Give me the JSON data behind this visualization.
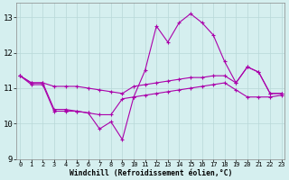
{
  "x": [
    0,
    1,
    2,
    3,
    4,
    5,
    6,
    7,
    8,
    9,
    10,
    11,
    12,
    13,
    14,
    15,
    16,
    17,
    18,
    19,
    20,
    21,
    22,
    23
  ],
  "line1_volatile": [
    11.35,
    11.15,
    11.15,
    10.4,
    10.4,
    10.35,
    10.3,
    9.85,
    10.05,
    9.55,
    10.75,
    11.5,
    12.75,
    12.3,
    12.85,
    13.1,
    12.85,
    12.5,
    11.75,
    11.15,
    11.6,
    11.45,
    10.85,
    10.85
  ],
  "line2_upper": [
    11.35,
    11.15,
    11.15,
    11.05,
    11.05,
    11.05,
    11.0,
    10.95,
    10.9,
    10.85,
    11.05,
    11.1,
    11.15,
    11.2,
    11.25,
    11.3,
    11.3,
    11.35,
    11.35,
    11.15,
    11.6,
    11.45,
    10.85,
    10.85
  ],
  "line3_lower": [
    11.35,
    11.1,
    11.1,
    10.35,
    10.35,
    10.35,
    10.3,
    10.25,
    10.25,
    10.7,
    10.75,
    10.8,
    10.85,
    10.9,
    10.95,
    11.0,
    11.05,
    11.1,
    11.15,
    10.95,
    10.75,
    10.75,
    10.75,
    10.8
  ],
  "line_color": "#aa00aa",
  "bg_color": "#d5efef",
  "grid_color": "#b8d8d8",
  "xlabel": "Windchill (Refroidissement éolien,°C)",
  "ylim": [
    9,
    13.4
  ],
  "xlim": [
    -0.3,
    23.3
  ],
  "yticks": [
    9,
    10,
    11,
    12,
    13
  ],
  "xticks": [
    0,
    1,
    2,
    3,
    4,
    5,
    6,
    7,
    8,
    9,
    10,
    11,
    12,
    13,
    14,
    15,
    16,
    17,
    18,
    19,
    20,
    21,
    22,
    23
  ]
}
